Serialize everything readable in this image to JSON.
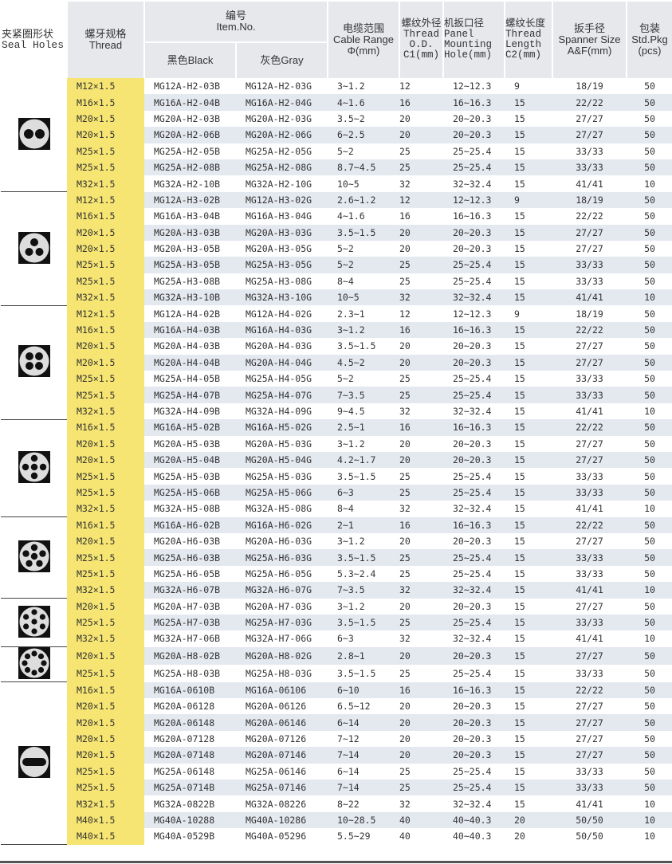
{
  "header": {
    "seal": [
      "夹紧圈形状",
      "Seal Holes"
    ],
    "thread": [
      "螺牙规格",
      "Thread"
    ],
    "item": [
      "编号",
      "Item.No."
    ],
    "black": "黑色Black",
    "gray": "灰色Gray",
    "cable": [
      "电缆范围",
      "Cable Range",
      "Φ(mm)"
    ],
    "od": [
      "螺纹外径",
      "Thread",
      "O.D.",
      "C1(mm)"
    ],
    "panel": [
      "机扳口径",
      "Panel",
      "Mounting",
      "Hole(mm)"
    ],
    "length": [
      "螺纹长度",
      "Thread",
      "Length",
      "C2(mm)"
    ],
    "spanner": [
      "扳手径",
      "Spanner Size",
      "A&F(mm)"
    ],
    "pkg": [
      "包装",
      "Std.Pkg",
      "(pcs)"
    ]
  },
  "groups": [
    {
      "icon": "seal-2-holes-icon",
      "holes": 2,
      "rows": [
        [
          "M12×1.5",
          "MG12A-H2-03B",
          "MG12A-H2-03G",
          "3~1.2",
          "12",
          "12~12.3",
          "9",
          "18/19",
          "50"
        ],
        [
          "M16×1.5",
          "MG16A-H2-04B",
          "MG16A-H2-04G",
          "4~1.6",
          "16",
          "16~16.3",
          "15",
          "22/22",
          "50"
        ],
        [
          "M20×1.5",
          "MG20A-H2-03B",
          "MG20A-H2-03G",
          "3.5~2",
          "20",
          "20~20.3",
          "15",
          "27/27",
          "50"
        ],
        [
          "M20×1.5",
          "MG20A-H2-06B",
          "MG20A-H2-06G",
          "6~2.5",
          "20",
          "20~20.3",
          "15",
          "27/27",
          "50"
        ],
        [
          "M25×1.5",
          "MG25A-H2-05B",
          "MG25A-H2-05G",
          "5~2",
          "25",
          "25~25.4",
          "15",
          "33/33",
          "50"
        ],
        [
          "M25×1.5",
          "MG25A-H2-08B",
          "MG25A-H2-08G",
          "8.7~4.5",
          "25",
          "25~25.4",
          "15",
          "33/33",
          "50"
        ],
        [
          "M32×1.5",
          "MG32A-H2-10B",
          "MG32A-H2-10G",
          "10~5",
          "32",
          "32~32.4",
          "15",
          "41/41",
          "10"
        ]
      ]
    },
    {
      "icon": "seal-3-holes-icon",
      "holes": 3,
      "rows": [
        [
          "M12×1.5",
          "MG12A-H3-02B",
          "MG12A-H3-02G",
          "2.6~1.2",
          "12",
          "12~12.3",
          "9",
          "18/19",
          "50"
        ],
        [
          "M16×1.5",
          "MG16A-H3-04B",
          "MG16A-H3-04G",
          "4~1.6",
          "16",
          "16~16.3",
          "15",
          "22/22",
          "50"
        ],
        [
          "M20×1.5",
          "MG20A-H3-03B",
          "MG20A-H3-03G",
          "3.5~1.5",
          "20",
          "20~20.3",
          "15",
          "27/27",
          "50"
        ],
        [
          "M20×1.5",
          "MG20A-H3-05B",
          "MG20A-H3-05G",
          "5~2",
          "20",
          "20~20.3",
          "15",
          "27/27",
          "50"
        ],
        [
          "M25×1.5",
          "MG25A-H3-05B",
          "MG25A-H3-05G",
          "5~2",
          "25",
          "25~25.4",
          "15",
          "33/33",
          "50"
        ],
        [
          "M25×1.5",
          "MG25A-H3-08B",
          "MG25A-H3-08G",
          "8~4",
          "25",
          "25~25.4",
          "15",
          "33/33",
          "50"
        ],
        [
          "M32×1.5",
          "MG32A-H3-10B",
          "MG32A-H3-10G",
          "10~5",
          "32",
          "32~32.4",
          "15",
          "41/41",
          "10"
        ]
      ]
    },
    {
      "icon": "seal-4-holes-icon",
      "holes": 4,
      "rows": [
        [
          "M12×1.5",
          "MG12A-H4-02B",
          "MG12A-H4-02G",
          "2.3~1",
          "12",
          "12~12.3",
          "9",
          "18/19",
          "50"
        ],
        [
          "M16×1.5",
          "MG16A-H4-03B",
          "MG16A-H4-03G",
          "3~1.2",
          "16",
          "16~16.3",
          "15",
          "22/22",
          "50"
        ],
        [
          "M20×1.5",
          "MG20A-H4-03B",
          "MG20A-H4-03G",
          "3.5~1.5",
          "20",
          "20~20.3",
          "15",
          "27/27",
          "50"
        ],
        [
          "M20×1.5",
          "MG20A-H4-04B",
          "MG20A-H4-04G",
          "4.5~2",
          "20",
          "20~20.3",
          "15",
          "27/27",
          "50"
        ],
        [
          "M25×1.5",
          "MG25A-H4-05B",
          "MG25A-H4-05G",
          "5~2",
          "25",
          "25~25.4",
          "15",
          "33/33",
          "50"
        ],
        [
          "M25×1.5",
          "MG25A-H4-07B",
          "MG25A-H4-07G",
          "7~3.5",
          "25",
          "25~25.4",
          "15",
          "33/33",
          "50"
        ],
        [
          "M32×1.5",
          "MG32A-H4-09B",
          "MG32A-H4-09G",
          "9~4.5",
          "32",
          "32~32.4",
          "15",
          "41/41",
          "10"
        ]
      ]
    },
    {
      "icon": "seal-5-holes-icon",
      "holes": 5,
      "rows": [
        [
          "M16×1.5",
          "MG16A-H5-02B",
          "MG16A-H5-02G",
          "2.5~1",
          "16",
          "16~16.3",
          "15",
          "22/22",
          "50"
        ],
        [
          "M20×1.5",
          "MG20A-H5-03B",
          "MG20A-H5-03G",
          "3~1.2",
          "20",
          "20~20.3",
          "15",
          "27/27",
          "50"
        ],
        [
          "M20×1.5",
          "MG20A-H5-04B",
          "MG20A-H5-04G",
          "4.2~1.7",
          "20",
          "20~20.3",
          "15",
          "27/27",
          "50"
        ],
        [
          "M25×1.5",
          "MG25A-H5-03B",
          "MG25A-H5-03G",
          "3.5~1.5",
          "25",
          "25~25.4",
          "15",
          "33/33",
          "50"
        ],
        [
          "M25×1.5",
          "MG25A-H5-06B",
          "MG25A-H5-06G",
          "6~3",
          "25",
          "25~25.4",
          "15",
          "33/33",
          "50"
        ],
        [
          "M32×1.5",
          "MG32A-H5-08B",
          "MG32A-H5-08G",
          "8~4",
          "32",
          "32~32.4",
          "15",
          "41/41",
          "10"
        ]
      ]
    },
    {
      "icon": "seal-6-holes-icon",
      "holes": 6,
      "rows": [
        [
          "M16×1.5",
          "MG16A-H6-02B",
          "MG16A-H6-02G",
          "2~1",
          "16",
          "16~16.3",
          "15",
          "22/22",
          "50"
        ],
        [
          "M20×1.5",
          "MG20A-H6-03B",
          "MG20A-H6-03G",
          "3~1.2",
          "20",
          "20~20.3",
          "15",
          "27/27",
          "50"
        ],
        [
          "M25×1.5",
          "MG25A-H6-03B",
          "MG25A-H6-03G",
          "3.5~1.5",
          "25",
          "25~25.4",
          "15",
          "33/33",
          "50"
        ],
        [
          "M25×1.5",
          "MG25A-H6-05B",
          "MG25A-H6-05G",
          "5.3~2.4",
          "25",
          "25~25.4",
          "15",
          "33/33",
          "50"
        ],
        [
          "M32×1.5",
          "MG32A-H6-07B",
          "MG32A-H6-07G",
          "7~3.5",
          "32",
          "32~32.4",
          "15",
          "41/41",
          "10"
        ]
      ]
    },
    {
      "icon": "seal-7-holes-icon",
      "holes": 7,
      "rows": [
        [
          "M20×1.5",
          "MG20A-H7-03B",
          "MG20A-H7-03G",
          "3~1.2",
          "20",
          "20~20.3",
          "15",
          "27/27",
          "50"
        ],
        [
          "M25×1.5",
          "MG25A-H7-03B",
          "MG25A-H7-03G",
          "3.5~1.5",
          "25",
          "25~25.4",
          "15",
          "33/33",
          "50"
        ],
        [
          "M32×1.5",
          "MG32A-H7-06B",
          "MG32A-H7-06G",
          "6~3",
          "32",
          "32~32.4",
          "15",
          "41/41",
          "10"
        ]
      ]
    },
    {
      "icon": "seal-8-holes-icon",
      "holes": 8,
      "rows": [
        [
          "M20×1.5",
          "MG20A-H8-02B",
          "MG20A-H8-02G",
          "2.8~1",
          "20",
          "20~20.3",
          "15",
          "27/27",
          "50"
        ],
        [
          "M25×1.5",
          "MG25A-H8-03B",
          "MG25A-H8-03G",
          "3.5~1.5",
          "25",
          "25~25.4",
          "15",
          "33/33",
          "50"
        ]
      ]
    },
    {
      "icon": "seal-oval-hole-icon",
      "holes": 0,
      "rows": [
        [
          "M16×1.5",
          "MG16A-0610B",
          "MG16A-06106",
          "6~10",
          "16",
          "16~16.3",
          "15",
          "22/22",
          "50"
        ],
        [
          "M20×1.5",
          "MG20A-06128",
          "MG20A-06126",
          "6.5~12",
          "20",
          "20~20.3",
          "15",
          "27/27",
          "50"
        ],
        [
          "M20×1.5",
          "MG20A-06148",
          "MG20A-06146",
          "6~14",
          "20",
          "20~20.3",
          "15",
          "27/27",
          "50"
        ],
        [
          "M20×1.5",
          "MG20A-07128",
          "MG20A-07126",
          "7~12",
          "20",
          "20~20.3",
          "15",
          "27/27",
          "50"
        ],
        [
          "M20×1.5",
          "MG20A-07148",
          "MG20A-07146",
          "7~14",
          "20",
          "20~20.3",
          "15",
          "27/27",
          "50"
        ],
        [
          "M25×1.5",
          "MG25A-06148",
          "MG25A-06146",
          "6~14",
          "25",
          "25~25.4",
          "15",
          "33/33",
          "50"
        ],
        [
          "M25×1.5",
          "MG25A-0714B",
          "MG25A-07146",
          "7~14",
          "25",
          "25~25.4",
          "15",
          "33/33",
          "50"
        ],
        [
          "M32×1.5",
          "MG32A-0822B",
          "MG32A-08226",
          "8~22",
          "32",
          "32~32.4",
          "15",
          "41/41",
          "10"
        ],
        [
          "M40×1.5",
          "MG40A-10288",
          "MG40A-10286",
          "10~28.5",
          "40",
          "40~40.3",
          "20",
          "50/50",
          "10"
        ],
        [
          "M40×1.5",
          "MG40A-0529B",
          "MG40A-05296",
          "5.5~29",
          "40",
          "40~40.3",
          "20",
          "50/50",
          "10"
        ]
      ]
    }
  ],
  "colors": {
    "thread_col": "#f6e572",
    "stripe": "#e4e8ef",
    "header_bg": "#e6e8ec"
  }
}
